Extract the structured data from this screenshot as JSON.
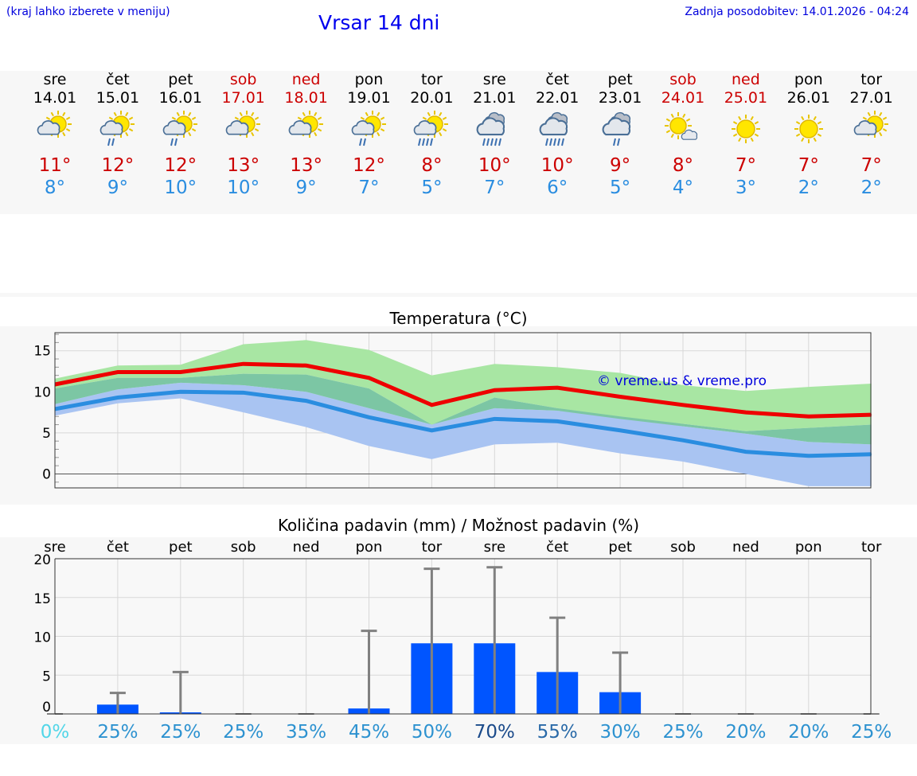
{
  "header": {
    "location_hint": "(kraj lahko izberete v meniju)",
    "title": "Vrsar 14 dni",
    "updated": "Zadnja posodobitev: 14.01.2026 - 04:24"
  },
  "colors": {
    "weekend": "#cc0000",
    "tmax": "#ee0000",
    "tmin": "#2a8de0",
    "tmax_band": "#a8e6a3",
    "tmin_band": "#a9c4f2",
    "overlap_band": "#7cc6a4",
    "precip_bar": "#0055ff"
  },
  "days": [
    {
      "wd": "sre",
      "date": "14.01",
      "weekend": false,
      "icon": "partly-cloudy-icon",
      "tmax": "11°",
      "tmin": "8°"
    },
    {
      "wd": "čet",
      "date": "15.01",
      "weekend": false,
      "icon": "partly-cloudy-rain-icon",
      "tmax": "12°",
      "tmin": "9°"
    },
    {
      "wd": "pet",
      "date": "16.01",
      "weekend": false,
      "icon": "partly-cloudy-rain-icon",
      "tmax": "12°",
      "tmin": "10°"
    },
    {
      "wd": "sob",
      "date": "17.01",
      "weekend": true,
      "icon": "partly-cloudy-icon",
      "tmax": "13°",
      "tmin": "10°"
    },
    {
      "wd": "ned",
      "date": "18.01",
      "weekend": true,
      "icon": "partly-cloudy-icon",
      "tmax": "13°",
      "tmin": "9°"
    },
    {
      "wd": "pon",
      "date": "19.01",
      "weekend": false,
      "icon": "partly-cloudy-rain-icon",
      "tmax": "12°",
      "tmin": "7°"
    },
    {
      "wd": "tor",
      "date": "20.01",
      "weekend": false,
      "icon": "partly-cloudy-heavy-rain-icon",
      "tmax": "8°",
      "tmin": "5°"
    },
    {
      "wd": "sre",
      "date": "21.01",
      "weekend": false,
      "icon": "cloudy-heavy-rain-icon",
      "tmax": "10°",
      "tmin": "7°"
    },
    {
      "wd": "čet",
      "date": "22.01",
      "weekend": false,
      "icon": "cloudy-heavy-rain-icon",
      "tmax": "10°",
      "tmin": "6°"
    },
    {
      "wd": "pet",
      "date": "23.01",
      "weekend": false,
      "icon": "cloudy-rain-icon",
      "tmax": "9°",
      "tmin": "5°"
    },
    {
      "wd": "sob",
      "date": "24.01",
      "weekend": true,
      "icon": "sun-small-cloud-icon",
      "tmax": "8°",
      "tmin": "4°"
    },
    {
      "wd": "ned",
      "date": "25.01",
      "weekend": true,
      "icon": "sun-icon",
      "tmax": "7°",
      "tmin": "3°"
    },
    {
      "wd": "pon",
      "date": "26.01",
      "weekend": false,
      "icon": "sun-icon",
      "tmax": "7°",
      "tmin": "2°"
    },
    {
      "wd": "tor",
      "date": "27.01",
      "weekend": false,
      "icon": "partly-cloudy-icon",
      "tmax": "7°",
      "tmin": "2°"
    }
  ],
  "chart_data": [
    {
      "type": "line",
      "title": "Temperatura (°C)",
      "watermark": "© vreme.us & vreme.pro",
      "ylim": [
        -1.7,
        17.2
      ],
      "yticks": [
        0,
        5,
        10,
        15
      ],
      "grid": true,
      "series": [
        {
          "name": "tmax",
          "values": [
            10.9,
            12.4,
            12.4,
            13.4,
            13.2,
            11.7,
            8.4,
            10.2,
            10.5,
            9.4,
            8.4,
            7.5,
            7.0,
            7.2
          ],
          "band_high": [
            11.6,
            13.2,
            13.3,
            15.8,
            16.3,
            15.1,
            12.0,
            13.4,
            13.0,
            12.3,
            10.8,
            10.1,
            10.6,
            11.0
          ],
          "band_low": [
            10.4,
            11.7,
            11.7,
            12.2,
            12.1,
            10.4,
            6.0,
            9.3,
            8.0,
            6.7,
            6.1,
            5.2,
            5.6,
            6.0
          ]
        },
        {
          "name": "tmin",
          "values": [
            7.9,
            9.3,
            10.0,
            9.9,
            8.9,
            6.9,
            5.3,
            6.7,
            6.4,
            5.3,
            4.1,
            2.7,
            2.2,
            2.4
          ],
          "band_high": [
            8.5,
            10.3,
            11.1,
            10.8,
            10.0,
            8.0,
            6.0,
            8.0,
            7.7,
            7.0,
            5.8,
            4.9,
            3.9,
            3.6
          ],
          "band_low": [
            7.1,
            8.6,
            9.2,
            7.5,
            5.7,
            3.4,
            1.8,
            3.6,
            3.8,
            2.5,
            1.5,
            0.0,
            -1.5,
            -1.5
          ]
        }
      ]
    },
    {
      "type": "bar",
      "title": "Količina padavin (mm) / Možnost padavin (%)",
      "categories": [
        "sre",
        "čet",
        "pet",
        "sob",
        "ned",
        "pon",
        "tor",
        "sre",
        "čet",
        "pet",
        "sob",
        "ned",
        "pon",
        "tor"
      ],
      "values": [
        0,
        1.2,
        0.2,
        0,
        0,
        0.7,
        9.1,
        9.1,
        5.4,
        2.8,
        0,
        0,
        0,
        0
      ],
      "error_high": [
        0,
        2.7,
        5.4,
        0,
        0,
        10.7,
        18.7,
        18.9,
        12.4,
        7.9,
        0,
        0,
        0,
        0
      ],
      "probability": [
        "0%",
        "25%",
        "25%",
        "25%",
        "35%",
        "45%",
        "50%",
        "70%",
        "55%",
        "30%",
        "25%",
        "20%",
        "20%",
        "25%"
      ],
      "ylim": [
        0,
        20
      ],
      "yticks": [
        0,
        5,
        10,
        15,
        20
      ]
    }
  ]
}
